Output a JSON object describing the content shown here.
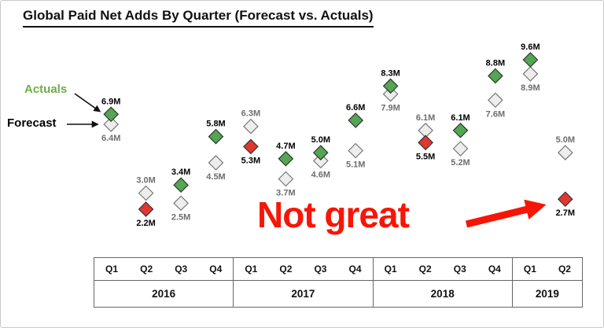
{
  "title": "Global Paid Net Adds By Quarter (Forecast vs. Actuals)",
  "legend": {
    "actuals": "Actuals",
    "forecast": "Forecast"
  },
  "annotation": {
    "text": "Not great"
  },
  "colors": {
    "actual_green": "#53a653",
    "actual_red": "#e23730",
    "actual_stroke": "#333333",
    "forecast_fill": "#ededeb",
    "forecast_stroke": "#777777",
    "forecast_label": "#6e6e6e",
    "actuals_legend_green": "#6fad47",
    "annotation_red": "#f71505",
    "arrow_black": "#111111"
  },
  "chart_data": {
    "type": "scatter",
    "title": "Global Paid Net Adds By Quarter (Forecast vs. Actuals)",
    "series": [
      {
        "name": "Actuals"
      },
      {
        "name": "Forecast"
      }
    ],
    "ylim": [
      1.6,
      10.2
    ],
    "legend_position": "left",
    "grid": false,
    "years": [
      {
        "label": "2016",
        "quarters": [
          "Q1",
          "Q2",
          "Q3",
          "Q4"
        ]
      },
      {
        "label": "2017",
        "quarters": [
          "Q1",
          "Q2",
          "Q3",
          "Q4"
        ]
      },
      {
        "label": "2018",
        "quarters": [
          "Q1",
          "Q2",
          "Q3",
          "Q4"
        ]
      },
      {
        "label": "2019",
        "quarters": [
          "Q1",
          "Q2"
        ]
      }
    ],
    "points": [
      {
        "year": "2016",
        "quarter": "Q1",
        "actual": 6.9,
        "forecast": 6.4,
        "actual_label": "6.9M",
        "forecast_label": "6.4M",
        "miss": false
      },
      {
        "year": "2016",
        "quarter": "Q2",
        "actual": 2.2,
        "forecast": 3.0,
        "actual_label": "2.2M",
        "forecast_label": "3.0M",
        "miss": true
      },
      {
        "year": "2016",
        "quarter": "Q3",
        "actual": 3.4,
        "forecast": 2.5,
        "actual_label": "3.4M",
        "forecast_label": "2.5M",
        "miss": false
      },
      {
        "year": "2016",
        "quarter": "Q4",
        "actual": 5.8,
        "forecast": 4.5,
        "actual_label": "5.8M",
        "forecast_label": "4.5M",
        "miss": false
      },
      {
        "year": "2017",
        "quarter": "Q1",
        "actual": 5.3,
        "forecast": 6.3,
        "actual_label": "5.3M",
        "forecast_label": "6.3M",
        "miss": true
      },
      {
        "year": "2017",
        "quarter": "Q2",
        "actual": 4.7,
        "forecast": 3.7,
        "actual_label": "4.7M",
        "forecast_label": "3.7M",
        "miss": false
      },
      {
        "year": "2017",
        "quarter": "Q3",
        "actual": 5.0,
        "forecast": 4.6,
        "actual_label": "5.0M",
        "forecast_label": "4.6M",
        "miss": false
      },
      {
        "year": "2017",
        "quarter": "Q4",
        "actual": 6.6,
        "forecast": 5.1,
        "actual_label": "6.6M",
        "forecast_label": "5.1M",
        "miss": false
      },
      {
        "year": "2018",
        "quarter": "Q1",
        "actual": 8.3,
        "forecast": 7.9,
        "actual_label": "8.3M",
        "forecast_label": "7.9M",
        "miss": false
      },
      {
        "year": "2018",
        "quarter": "Q2",
        "actual": 5.5,
        "forecast": 6.1,
        "actual_label": "5.5M",
        "forecast_label": "6.1M",
        "miss": true
      },
      {
        "year": "2018",
        "quarter": "Q3",
        "actual": 6.1,
        "forecast": 5.2,
        "actual_label": "6.1M",
        "forecast_label": "5.2M",
        "miss": false
      },
      {
        "year": "2018",
        "quarter": "Q4",
        "actual": 8.8,
        "forecast": 7.6,
        "actual_label": "8.8M",
        "forecast_label": "7.6M",
        "miss": false
      },
      {
        "year": "2019",
        "quarter": "Q1",
        "actual": 9.6,
        "forecast": 8.9,
        "actual_label": "9.6M",
        "forecast_label": "8.9M",
        "miss": false
      },
      {
        "year": "2019",
        "quarter": "Q2",
        "actual": 2.7,
        "forecast": 5.0,
        "actual_label": "2.7M",
        "forecast_label": "5.0M",
        "miss": true
      }
    ]
  }
}
